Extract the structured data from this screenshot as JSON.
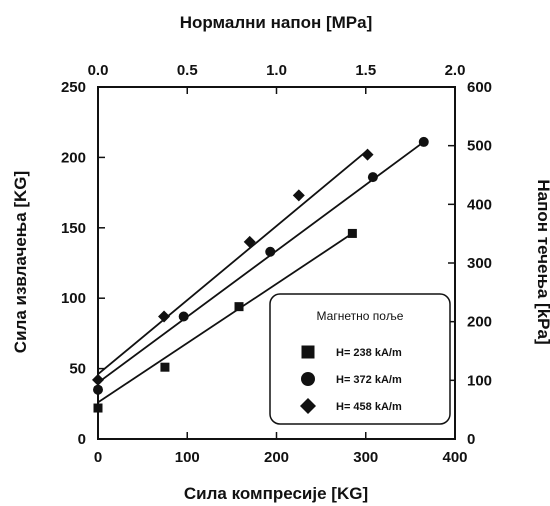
{
  "chart_data": {
    "type": "scatter",
    "title": "",
    "xlabel": "Сила компресије [KG]",
    "ylabel": "Сила извлачења [KG]",
    "x2label": "Нормални напон [MPa]",
    "y2label": "Напон течења [kPa]",
    "xlim": [
      0,
      400
    ],
    "ylim": [
      0,
      250
    ],
    "x2lim": [
      0,
      2.0
    ],
    "y2lim": [
      0,
      600
    ],
    "xticks": [
      "0",
      "100",
      "200",
      "300",
      "400"
    ],
    "yticks": [
      "0",
      "50",
      "100",
      "150",
      "200",
      "250"
    ],
    "x2ticks": [
      "0.0",
      "0.5",
      "1.0",
      "1.5",
      "2.0"
    ],
    "y2ticks": [
      "0",
      "100",
      "200",
      "300",
      "400",
      "500",
      "600"
    ],
    "grid": false,
    "legend": {
      "title": "Магнетно поље",
      "placement": "bottom-right"
    },
    "series": [
      {
        "name": "H= 238 kA/m",
        "marker": "square",
        "x": [
          0,
          75,
          158,
          285
        ],
        "y": [
          22,
          51,
          94,
          146
        ],
        "fit": [
          [
            0,
            26
          ],
          [
            285,
            146
          ]
        ]
      },
      {
        "name": "H= 372 kA/m",
        "marker": "circle",
        "x": [
          0,
          96,
          193,
          308,
          365
        ],
        "y": [
          35,
          87,
          133,
          186,
          211
        ],
        "fit": [
          [
            0,
            40
          ],
          [
            365,
            211
          ]
        ]
      },
      {
        "name": "H= 458 kA/m",
        "marker": "diamond",
        "x": [
          0,
          74,
          170,
          225,
          302
        ],
        "y": [
          42,
          87,
          140,
          173,
          202
        ],
        "fit": [
          [
            0,
            46
          ],
          [
            302,
            205
          ]
        ]
      }
    ]
  }
}
